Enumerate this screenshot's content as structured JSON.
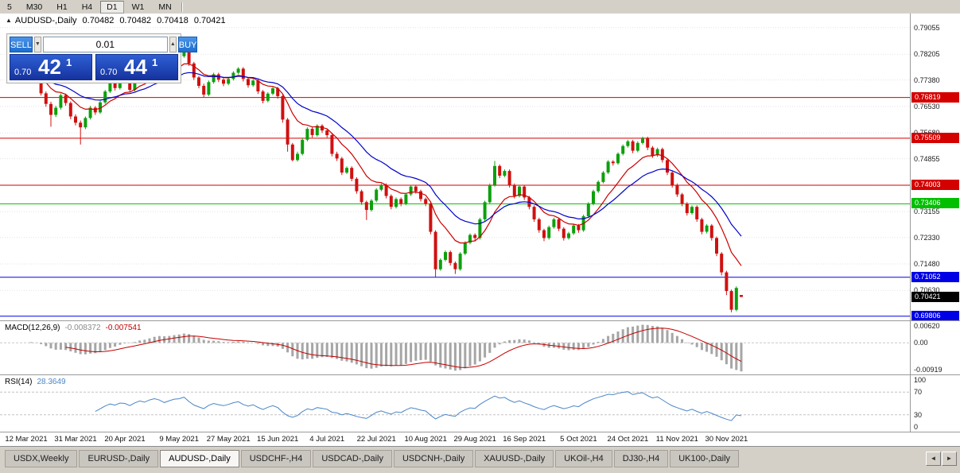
{
  "toolbar": {
    "timeframes": [
      "5",
      "M30",
      "H1",
      "H4",
      "D1",
      "W1",
      "MN"
    ],
    "active": "D1"
  },
  "chart_header": {
    "title": "AUDUSD-,Daily",
    "open": "0.70482",
    "high": "0.70482",
    "low": "0.70418",
    "close": "0.70421"
  },
  "trade_panel": {
    "toggle_icon": "▲",
    "sell_label": "SELL",
    "buy_label": "BUY",
    "lot_value": "0.01",
    "stepper_down": "▼",
    "stepper_up": "▲",
    "sell_price_head": "0.70",
    "sell_price_big": "42",
    "sell_price_sup": "1",
    "buy_price_head": "0.70",
    "buy_price_big": "44",
    "buy_price_sup": "1"
  },
  "chart_data": {
    "type": "candlestick",
    "symbol": "AUDUSD-",
    "timeframe": "Daily",
    "current_price": "0.70421",
    "up_color": "#0da00d",
    "down_color": "#d01010",
    "grid_color": "#e3e3e3",
    "price_ticks": [
      "0.79055",
      "0.78205",
      "0.77380",
      "0.76530",
      "0.75680",
      "0.74855",
      "0.74005",
      "0.73155",
      "0.72330",
      "0.71480",
      "0.70630"
    ],
    "hlines": [
      {
        "label": "0.76819",
        "color": "#d40000"
      },
      {
        "label": "0.75509",
        "color": "#d40000"
      },
      {
        "label": "0.74003",
        "color": "#d40000"
      },
      {
        "label": "0.73406",
        "color": "#00bf00"
      },
      {
        "label": "0.71052",
        "color": "#0000e6"
      },
      {
        "label": "0.69806",
        "color": "#0000e6"
      }
    ],
    "moving_averages": [
      {
        "period": 10,
        "color": "#cc0000"
      },
      {
        "period": 21,
        "color": "#0000cc"
      }
    ],
    "x_labels": [
      {
        "text": "12 Mar 2021",
        "i": 0
      },
      {
        "text": "31 Mar 2021",
        "i": 10
      },
      {
        "text": "20 Apr 2021",
        "i": 20
      },
      {
        "text": "9 May 2021",
        "i": 31
      },
      {
        "text": "27 May 2021",
        "i": 41
      },
      {
        "text": "15 Jun 2021",
        "i": 51
      },
      {
        "text": "4 Jul 2021",
        "i": 61
      },
      {
        "text": "22 Jul 2021",
        "i": 71
      },
      {
        "text": "10 Aug 2021",
        "i": 81
      },
      {
        "text": "29 Aug 2021",
        "i": 91
      },
      {
        "text": "16 Sep 2021",
        "i": 101
      },
      {
        "text": "5 Oct 2021",
        "i": 112
      },
      {
        "text": "24 Oct 2021",
        "i": 122
      },
      {
        "text": "11 Nov 2021",
        "i": 132
      },
      {
        "text": "30 Nov 2021",
        "i": 142
      }
    ],
    "macd": {
      "label": "MACD(12,26,9)",
      "fast": 12,
      "slow": 26,
      "signal": 9,
      "value": "-0.008372",
      "signal_value": "-0.007541",
      "histogram_color": "#a6a6a6",
      "signal_color": "#c40000",
      "scale": [
        {
          "text": "0.00620",
          "v": 0.0062
        },
        {
          "text": "0.00",
          "v": 0
        },
        {
          "text": "-0.00919",
          "v": -0.00919
        }
      ]
    },
    "rsi": {
      "label": "RSI(14)",
      "period": 14,
      "value": "28.3649",
      "color": "#4a86c8",
      "levels": [
        70,
        30
      ],
      "scale": [
        {
          "text": "100",
          "v": 100
        },
        {
          "text": "70",
          "v": 70
        },
        {
          "text": "30",
          "v": 30
        },
        {
          "text": "0",
          "v": 0
        }
      ]
    },
    "candles": [
      [
        0.7745,
        0.779,
        0.7738,
        0.7755
      ],
      [
        0.7755,
        0.779,
        0.7748,
        0.7782
      ],
      [
        0.7782,
        0.7789,
        0.7735,
        0.7741
      ],
      [
        0.7741,
        0.7748,
        0.7688,
        0.7695
      ],
      [
        0.7695,
        0.7701,
        0.7652,
        0.7661
      ],
      [
        0.7661,
        0.7668,
        0.7588,
        0.7626
      ],
      [
        0.7626,
        0.7655,
        0.7619,
        0.7649
      ],
      [
        0.7649,
        0.7695,
        0.7643,
        0.7689
      ],
      [
        0.7689,
        0.7694,
        0.7655,
        0.7664
      ],
      [
        0.7664,
        0.7669,
        0.7612,
        0.7621
      ],
      [
        0.7621,
        0.7628,
        0.7592,
        0.7601
      ],
      [
        0.7601,
        0.7608,
        0.7531,
        0.7586
      ],
      [
        0.7586,
        0.7621,
        0.758,
        0.7616
      ],
      [
        0.7616,
        0.7655,
        0.7611,
        0.7649
      ],
      [
        0.7649,
        0.7654,
        0.7626,
        0.7634
      ],
      [
        0.7634,
        0.7671,
        0.7629,
        0.7666
      ],
      [
        0.7666,
        0.7706,
        0.7661,
        0.7701
      ],
      [
        0.7701,
        0.7734,
        0.7696,
        0.7729
      ],
      [
        0.7729,
        0.7734,
        0.7704,
        0.7712
      ],
      [
        0.7712,
        0.7746,
        0.7707,
        0.7741
      ],
      [
        0.7741,
        0.7748,
        0.7729,
        0.7736
      ],
      [
        0.7736,
        0.7741,
        0.7698,
        0.7706
      ],
      [
        0.7706,
        0.7746,
        0.7701,
        0.7741
      ],
      [
        0.7741,
        0.7774,
        0.7736,
        0.7769
      ],
      [
        0.7769,
        0.7774,
        0.7746,
        0.7754
      ],
      [
        0.7754,
        0.7791,
        0.7749,
        0.7786
      ],
      [
        0.7786,
        0.7811,
        0.7781,
        0.7806
      ],
      [
        0.7806,
        0.7812,
        0.7783,
        0.7791
      ],
      [
        0.7791,
        0.7796,
        0.7753,
        0.7761
      ],
      [
        0.7761,
        0.7791,
        0.7756,
        0.7786
      ],
      [
        0.7786,
        0.7814,
        0.7781,
        0.7809
      ],
      [
        0.7809,
        0.782,
        0.7801,
        0.7814
      ],
      [
        0.7814,
        0.7861,
        0.7809,
        0.7838
      ],
      [
        0.7838,
        0.7843,
        0.7783,
        0.7791
      ],
      [
        0.7791,
        0.7796,
        0.7738,
        0.7746
      ],
      [
        0.7746,
        0.7751,
        0.7711,
        0.7719
      ],
      [
        0.7719,
        0.7726,
        0.7683,
        0.7691
      ],
      [
        0.7691,
        0.7736,
        0.7686,
        0.7731
      ],
      [
        0.7731,
        0.7761,
        0.7726,
        0.7756
      ],
      [
        0.7756,
        0.7761,
        0.7731,
        0.7739
      ],
      [
        0.7739,
        0.7744,
        0.7718,
        0.7726
      ],
      [
        0.7726,
        0.7746,
        0.7721,
        0.7741
      ],
      [
        0.7741,
        0.7766,
        0.7736,
        0.7761
      ],
      [
        0.7761,
        0.7779,
        0.7756,
        0.7774
      ],
      [
        0.7774,
        0.7779,
        0.7733,
        0.7741
      ],
      [
        0.7741,
        0.7746,
        0.7713,
        0.7721
      ],
      [
        0.7721,
        0.7741,
        0.7716,
        0.7736
      ],
      [
        0.7736,
        0.7741,
        0.7693,
        0.7701
      ],
      [
        0.7701,
        0.7706,
        0.7663,
        0.7671
      ],
      [
        0.7671,
        0.7699,
        0.7666,
        0.7694
      ],
      [
        0.7694,
        0.7716,
        0.7689,
        0.7711
      ],
      [
        0.7711,
        0.7716,
        0.7678,
        0.7686
      ],
      [
        0.7686,
        0.7691,
        0.7601,
        0.7611
      ],
      [
        0.7611,
        0.7616,
        0.7508,
        0.7531
      ],
      [
        0.7531,
        0.7536,
        0.7477,
        0.7481
      ],
      [
        0.7481,
        0.7508,
        0.7476,
        0.7501
      ],
      [
        0.7501,
        0.7551,
        0.7496,
        0.7546
      ],
      [
        0.7546,
        0.7586,
        0.7541,
        0.7581
      ],
      [
        0.7581,
        0.7586,
        0.7553,
        0.7561
      ],
      [
        0.7561,
        0.7596,
        0.7556,
        0.7591
      ],
      [
        0.7591,
        0.7596,
        0.7568,
        0.7576
      ],
      [
        0.7576,
        0.7581,
        0.7553,
        0.7561
      ],
      [
        0.7561,
        0.7566,
        0.7493,
        0.7501
      ],
      [
        0.7501,
        0.7508,
        0.7478,
        0.7486
      ],
      [
        0.7486,
        0.7491,
        0.7433,
        0.7441
      ],
      [
        0.7441,
        0.7461,
        0.7436,
        0.7456
      ],
      [
        0.7456,
        0.7461,
        0.7413,
        0.7421
      ],
      [
        0.7421,
        0.7426,
        0.7373,
        0.7381
      ],
      [
        0.7381,
        0.7386,
        0.7338,
        0.7346
      ],
      [
        0.7346,
        0.7351,
        0.7289,
        0.7321
      ],
      [
        0.7321,
        0.7356,
        0.7316,
        0.7351
      ],
      [
        0.7351,
        0.7391,
        0.7346,
        0.7386
      ],
      [
        0.7386,
        0.7406,
        0.7381,
        0.7401
      ],
      [
        0.7401,
        0.7406,
        0.7358,
        0.7366
      ],
      [
        0.7366,
        0.7371,
        0.7323,
        0.7331
      ],
      [
        0.7331,
        0.7361,
        0.7326,
        0.7356
      ],
      [
        0.7356,
        0.7361,
        0.7333,
        0.7341
      ],
      [
        0.7341,
        0.7376,
        0.7336,
        0.7371
      ],
      [
        0.7371,
        0.7401,
        0.7366,
        0.7396
      ],
      [
        0.7396,
        0.7401,
        0.7373,
        0.7381
      ],
      [
        0.7381,
        0.7386,
        0.7348,
        0.7356
      ],
      [
        0.7356,
        0.7361,
        0.7333,
        0.7341
      ],
      [
        0.7341,
        0.7346,
        0.7243,
        0.7251
      ],
      [
        0.7251,
        0.7256,
        0.7106,
        0.7131
      ],
      [
        0.7131,
        0.7166,
        0.7126,
        0.7161
      ],
      [
        0.7161,
        0.7191,
        0.7156,
        0.7186
      ],
      [
        0.7186,
        0.7191,
        0.7143,
        0.7151
      ],
      [
        0.7151,
        0.7156,
        0.7116,
        0.7131
      ],
      [
        0.7131,
        0.7186,
        0.7126,
        0.7181
      ],
      [
        0.7181,
        0.7221,
        0.7176,
        0.7216
      ],
      [
        0.7216,
        0.7246,
        0.7211,
        0.7241
      ],
      [
        0.7241,
        0.7246,
        0.7223,
        0.7231
      ],
      [
        0.7231,
        0.7296,
        0.7226,
        0.7291
      ],
      [
        0.7291,
        0.7351,
        0.7286,
        0.7346
      ],
      [
        0.7346,
        0.7406,
        0.7341,
        0.7401
      ],
      [
        0.7401,
        0.7478,
        0.7396,
        0.7462
      ],
      [
        0.7462,
        0.7467,
        0.7423,
        0.7431
      ],
      [
        0.7431,
        0.7451,
        0.7426,
        0.7446
      ],
      [
        0.7446,
        0.7451,
        0.7393,
        0.7401
      ],
      [
        0.7401,
        0.7406,
        0.7358,
        0.7366
      ],
      [
        0.7366,
        0.7401,
        0.7361,
        0.7396
      ],
      [
        0.7396,
        0.7401,
        0.7353,
        0.7361
      ],
      [
        0.7361,
        0.7366,
        0.7323,
        0.7331
      ],
      [
        0.7331,
        0.7336,
        0.7283,
        0.7291
      ],
      [
        0.7291,
        0.7296,
        0.7248,
        0.7256
      ],
      [
        0.7256,
        0.7261,
        0.7221,
        0.7231
      ],
      [
        0.7231,
        0.7271,
        0.7226,
        0.7266
      ],
      [
        0.7266,
        0.7296,
        0.7261,
        0.7291
      ],
      [
        0.7291,
        0.7296,
        0.7253,
        0.7261
      ],
      [
        0.7261,
        0.7266,
        0.7223,
        0.7231
      ],
      [
        0.7231,
        0.7251,
        0.7226,
        0.7246
      ],
      [
        0.7246,
        0.7276,
        0.7241,
        0.7271
      ],
      [
        0.7271,
        0.7276,
        0.7248,
        0.7256
      ],
      [
        0.7256,
        0.7306,
        0.7251,
        0.7301
      ],
      [
        0.7301,
        0.7346,
        0.7296,
        0.7341
      ],
      [
        0.7341,
        0.7386,
        0.7336,
        0.7381
      ],
      [
        0.7381,
        0.7416,
        0.7376,
        0.7411
      ],
      [
        0.7411,
        0.7446,
        0.7406,
        0.7441
      ],
      [
        0.7441,
        0.7481,
        0.7436,
        0.7476
      ],
      [
        0.7476,
        0.7481,
        0.7463,
        0.7471
      ],
      [
        0.7471,
        0.7506,
        0.7466,
        0.7501
      ],
      [
        0.7501,
        0.7531,
        0.7496,
        0.7526
      ],
      [
        0.7526,
        0.7546,
        0.7521,
        0.7541
      ],
      [
        0.7541,
        0.7546,
        0.7503,
        0.7511
      ],
      [
        0.7511,
        0.7541,
        0.7506,
        0.7536
      ],
      [
        0.7536,
        0.7556,
        0.7531,
        0.7551
      ],
      [
        0.7551,
        0.7556,
        0.7513,
        0.7521
      ],
      [
        0.7521,
        0.7526,
        0.7488,
        0.7496
      ],
      [
        0.7496,
        0.7521,
        0.7491,
        0.7516
      ],
      [
        0.7516,
        0.7521,
        0.7473,
        0.7481
      ],
      [
        0.7481,
        0.7486,
        0.7433,
        0.7441
      ],
      [
        0.7441,
        0.7446,
        0.7393,
        0.7401
      ],
      [
        0.7401,
        0.7406,
        0.7363,
        0.7371
      ],
      [
        0.7371,
        0.7376,
        0.7333,
        0.7341
      ],
      [
        0.7341,
        0.7346,
        0.7303,
        0.7311
      ],
      [
        0.7311,
        0.7336,
        0.7306,
        0.7331
      ],
      [
        0.7331,
        0.7336,
        0.7283,
        0.7291
      ],
      [
        0.7291,
        0.7296,
        0.7243,
        0.7251
      ],
      [
        0.7251,
        0.7276,
        0.7246,
        0.7271
      ],
      [
        0.7271,
        0.7276,
        0.7223,
        0.7231
      ],
      [
        0.7231,
        0.7236,
        0.7173,
        0.7181
      ],
      [
        0.7181,
        0.7186,
        0.7111,
        0.7121
      ],
      [
        0.7121,
        0.7126,
        0.7048,
        0.7061
      ],
      [
        0.7061,
        0.7066,
        0.6993,
        0.7001
      ],
      [
        0.7001,
        0.7076,
        0.6996,
        0.7071
      ],
      [
        0.70482,
        0.70482,
        0.70418,
        0.70421
      ]
    ]
  },
  "tabs": {
    "items": [
      "USDX,Weekly",
      "EURUSD-,Daily",
      "AUDUSD-,Daily",
      "USDCHF-,H4",
      "USDCAD-,Daily",
      "USDCNH-,Daily",
      "XAUUSD-,Daily",
      "UKOil-,H4",
      "DJ30-,H4",
      "UK100-,Daily"
    ],
    "active": "AUDUSD-,Daily",
    "scroll_left_icon": "◄",
    "scroll_right_icon": "►"
  }
}
